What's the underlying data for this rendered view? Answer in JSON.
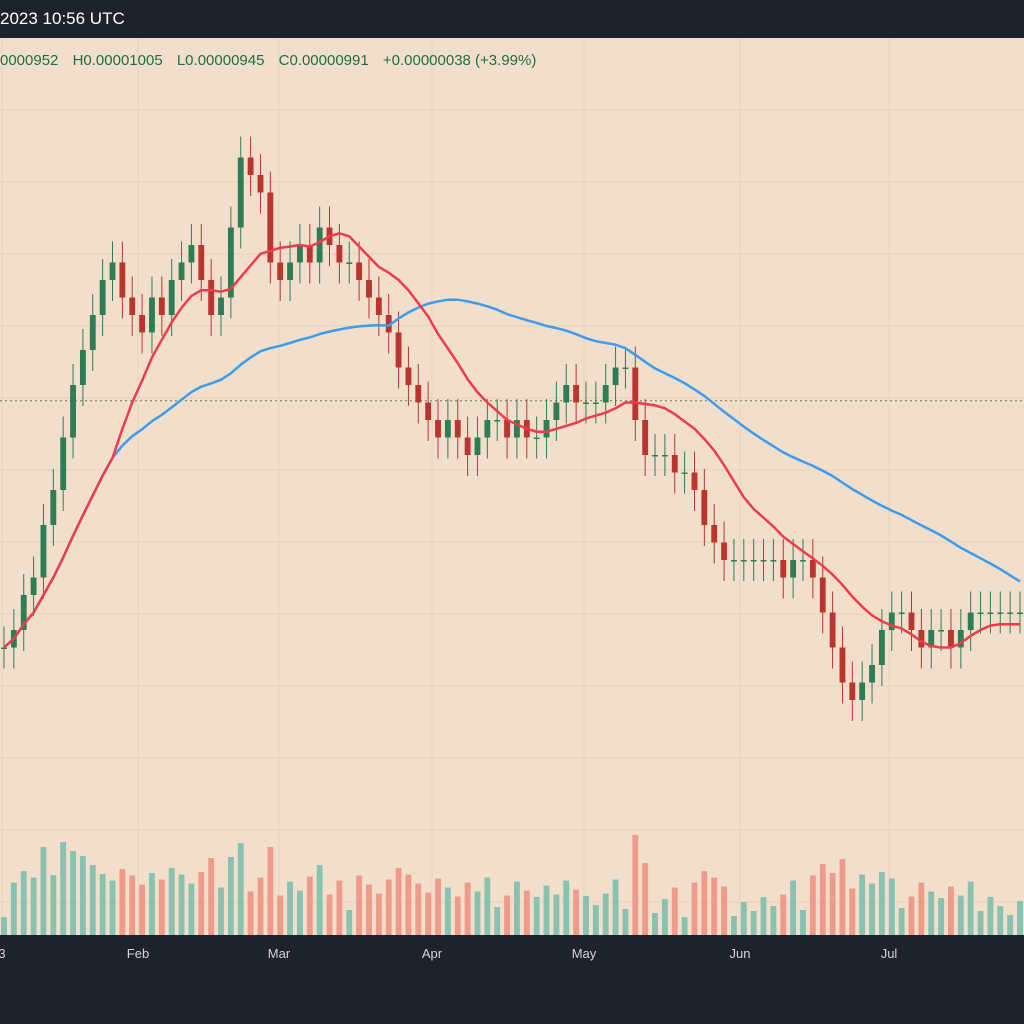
{
  "header": {
    "date_text": "2023 10:56 UTC",
    "ohlc": {
      "open": "0000952",
      "high": "H0.00001005",
      "low": "L0.00000945",
      "close": "C0.00000991",
      "change": "+0.00000038 (+3.99%)"
    }
  },
  "x_axis": {
    "labels": [
      "3",
      "Feb",
      "Mar",
      "Apr",
      "May",
      "Jun",
      "Jul"
    ]
  },
  "colors": {
    "background": "#f2dfcb",
    "up_candle": "#2e7d55",
    "down_candle": "#b8362f",
    "up_volume": "#89c2b0",
    "down_volume": "#ee9b8c",
    "ma_fast": "#ef3b4d",
    "ma_slow": "#3d9cf0",
    "frame": "#1e222d"
  },
  "chart_data": {
    "type": "candlestick",
    "title": "",
    "price_unit_note": "",
    "ylim": [
      7.4e-06,
      1.18e-05
    ],
    "grid": true,
    "last_close_line": 9.91e-06,
    "x_period": [
      "2023-01-01",
      "2023-07-31"
    ],
    "x_month_ticks": [
      "2023-01-01",
      "2023-02-01",
      "2023-03-01",
      "2023-04-01",
      "2023-05-01",
      "2023-06-01",
      "2023-07-01"
    ],
    "candles_close": [
      8.5e-06,
      8.6e-06,
      8.8e-06,
      8.9e-06,
      9.2e-06,
      9.4e-06,
      9.7e-06,
      1e-05,
      1.02e-05,
      1.04e-05,
      1.06e-05,
      1.07e-05,
      1.05e-05,
      1.04e-05,
      1.03e-05,
      1.05e-05,
      1.04e-05,
      1.06e-05,
      1.07e-05,
      1.08e-05,
      1.06e-05,
      1.04e-05,
      1.05e-05,
      1.09e-05,
      1.13e-05,
      1.12e-05,
      1.11e-05,
      1.07e-05,
      1.06e-05,
      1.07e-05,
      1.08e-05,
      1.07e-05,
      1.09e-05,
      1.08e-05,
      1.07e-05,
      1.07e-05,
      1.06e-05,
      1.05e-05,
      1.04e-05,
      1.03e-05,
      1.01e-05,
      1e-05,
      9.9e-06,
      9.8e-06,
      9.7e-06,
      9.8e-06,
      9.7e-06,
      9.6e-06,
      9.7e-06,
      9.8e-06,
      9.8e-06,
      9.7e-06,
      9.8e-06,
      9.7e-06,
      9.7e-06,
      9.8e-06,
      9.9e-06,
      1e-05,
      9.9e-06,
      9.9e-06,
      9.9e-06,
      1e-05,
      1.01e-05,
      1.01e-05,
      9.8e-06,
      9.6e-06,
      9.6e-06,
      9.6e-06,
      9.5e-06,
      9.5e-06,
      9.4e-06,
      9.2e-06,
      9.1e-06,
      9e-06,
      9e-06,
      9e-06,
      9e-06,
      9e-06,
      9e-06,
      8.9e-06,
      9e-06,
      9e-06,
      8.9e-06,
      8.7e-06,
      8.5e-06,
      8.3e-06,
      8.2e-06,
      8.3e-06,
      8.4e-06,
      8.6e-06,
      8.7e-06,
      8.7e-06,
      8.6e-06,
      8.5e-06,
      8.6e-06,
      8.6e-06,
      8.5e-06,
      8.6e-06,
      8.7e-06,
      8.7e-06,
      8.7e-06,
      8.7e-06,
      8.7e-06,
      8.7e-06
    ]
  }
}
